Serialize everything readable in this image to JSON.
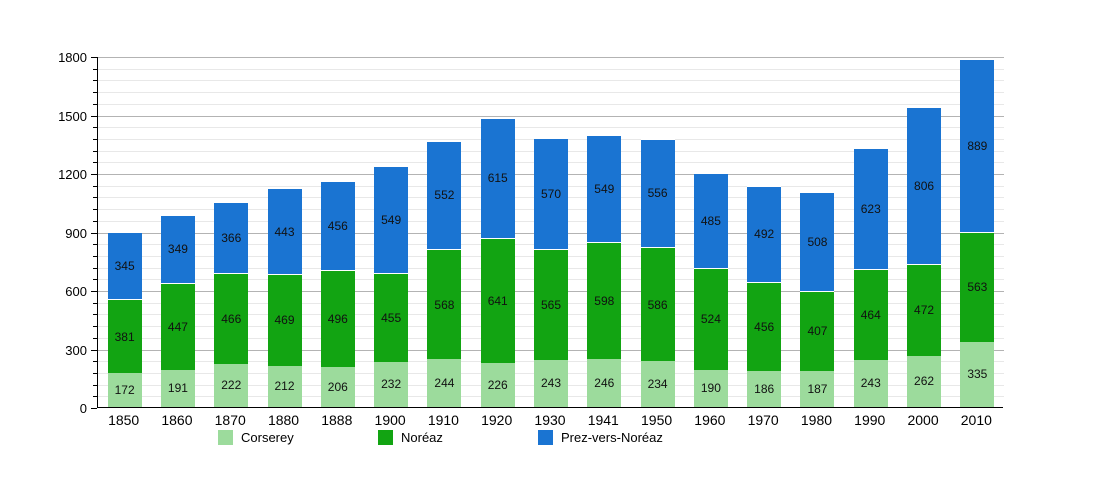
{
  "chart_data": {
    "type": "bar",
    "stacked": true,
    "title": "",
    "categories": [
      "1850",
      "1860",
      "1870",
      "1880",
      "1888",
      "1900",
      "1910",
      "1920",
      "1930",
      "1941",
      "1950",
      "1960",
      "1970",
      "1980",
      "1990",
      "2000",
      "2010"
    ],
    "series": [
      {
        "name": "Corserey",
        "color": "#9cdb9c",
        "values": [
          172,
          191,
          222,
          212,
          206,
          232,
          244,
          226,
          243,
          246,
          234,
          190,
          186,
          187,
          243,
          262,
          335
        ]
      },
      {
        "name": "Noréaz",
        "color": "#12a412",
        "values": [
          381,
          447,
          466,
          469,
          496,
          455,
          568,
          641,
          565,
          598,
          586,
          524,
          456,
          407,
          464,
          472,
          563
        ]
      },
      {
        "name": "Prez-vers-Noréaz",
        "color": "#1a74d2",
        "values": [
          345,
          349,
          366,
          443,
          456,
          549,
          552,
          615,
          570,
          549,
          556,
          485,
          492,
          508,
          623,
          806,
          889
        ]
      }
    ],
    "xlabel": "",
    "ylabel": "",
    "ylim": [
      0,
      1800
    ],
    "yticks": [
      0,
      300,
      600,
      900,
      1200,
      1500,
      1800
    ],
    "minor_step": 60,
    "grid": true,
    "legend_position": "bottom",
    "colors": {
      "grid_major": "#b3b3b3",
      "grid_minor": "#e8e8e8",
      "axis": "#000000",
      "value_label": "#111111"
    }
  },
  "layout_note": "stacked population bar chart, no title, legend bottom"
}
